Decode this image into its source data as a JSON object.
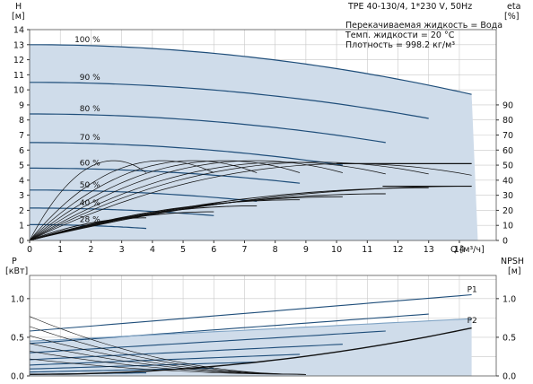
{
  "chart_data": [
    {
      "type": "line",
      "name": "head",
      "title": "TPE 40-130/4, 1*230 V, 50Hz",
      "info": [
        "Перекачиваемая жидкость = Вода",
        "Темп. жидкости = 20 °C",
        "Плотность = 998.2 кг/м³"
      ],
      "ylabel_left": [
        "H",
        "[м]"
      ],
      "ylabel_right": [
        "eta",
        "[%]"
      ],
      "xlabel": "Q [м³/ч]",
      "xlim": [
        0,
        15.2
      ],
      "ylim": [
        0,
        14
      ],
      "yticks": [
        0,
        1,
        2,
        3,
        4,
        5,
        6,
        7,
        8,
        9,
        10,
        11,
        12,
        13,
        14
      ],
      "xticks": [
        0,
        1,
        2,
        3,
        4,
        5,
        6,
        7,
        8,
        9,
        10,
        11,
        12,
        13,
        14
      ],
      "eta_ticks": [
        0,
        10,
        20,
        30,
        40,
        50,
        60,
        70,
        80,
        90
      ],
      "eta_scale_per_m": 10,
      "envelope": {
        "x": [
          0,
          14.4,
          14.6,
          0
        ],
        "y": [
          13.0,
          9.7,
          0,
          0
        ]
      },
      "series": [
        {
          "name": "100 %",
          "q_max": 14.4,
          "h0": 13.0,
          "h_end": 9.7
        },
        {
          "name": "90 %",
          "q_max": 13.0,
          "h0": 10.5,
          "h_end": 8.1
        },
        {
          "name": "80 %",
          "q_max": 11.6,
          "h0": 8.4,
          "h_end": 6.5
        },
        {
          "name": "70 %",
          "q_max": 10.2,
          "h0": 6.5,
          "h_end": 5.0
        },
        {
          "name": "60 %",
          "q_max": 8.8,
          "h0": 4.8,
          "h_end": 3.8
        },
        {
          "name": "50 %",
          "q_max": 7.4,
          "h0": 3.35,
          "h_end": 2.6
        },
        {
          "name": "40 %",
          "q_max": 6.0,
          "h0": 2.15,
          "h_end": 1.65
        },
        {
          "name": "28 %",
          "q_max": 3.8,
          "h0": 1.05,
          "h_end": 0.8
        }
      ],
      "eta_curves": {
        "q_max": [
          3.8,
          6.0,
          7.4,
          8.8,
          10.2,
          11.6,
          13.0,
          14.4
        ],
        "eta_max": [
          53,
          53,
          53,
          53,
          53,
          52,
          52,
          51
        ],
        "q_bep_frac": 0.72
      },
      "eta_lower": {
        "q_max": [
          3.8,
          6.0,
          7.4,
          8.8,
          10.2,
          11.6,
          13.0,
          14.4
        ],
        "eta_max": [
          15,
          19,
          23,
          27,
          29,
          31,
          35,
          36
        ]
      }
    },
    {
      "type": "line",
      "name": "power",
      "ylabel_left": [
        "P",
        "[кВт]"
      ],
      "ylabel_right": [
        "NPSH",
        "[м]"
      ],
      "xlim": [
        0,
        15.2
      ],
      "ylim": [
        0,
        1.3
      ],
      "yticks": [
        0,
        0.5,
        1.0
      ],
      "ytick_labels": [
        "0.0",
        "0.5",
        "1.0"
      ],
      "series": [
        {
          "name": "P1",
          "q_max": 14.4,
          "p0": 0.58,
          "p_end": 1.05
        },
        {
          "name": "",
          "q_max": 13.0,
          "p0": 0.42,
          "p_end": 0.8
        },
        {
          "name": "",
          "q_max": 11.6,
          "p0": 0.3,
          "p_end": 0.58
        },
        {
          "name": "",
          "q_max": 10.2,
          "p0": 0.21,
          "p_end": 0.41
        },
        {
          "name": "",
          "q_max": 8.8,
          "p0": 0.14,
          "p_end": 0.28
        },
        {
          "name": "",
          "q_max": 7.4,
          "p0": 0.09,
          "p_end": 0.18
        },
        {
          "name": "",
          "q_max": 6.0,
          "p0": 0.05,
          "p_end": 0.1
        },
        {
          "name": "",
          "q_max": 3.8,
          "p0": 0.02,
          "p_end": 0.04
        }
      ],
      "p2": {
        "name": "P2",
        "q_max": 14.4,
        "p0": 0.45,
        "p_end": 0.74
      },
      "npsh": {
        "q_max": 14.4,
        "n0": 0.02,
        "n_end": 0.62
      }
    }
  ]
}
